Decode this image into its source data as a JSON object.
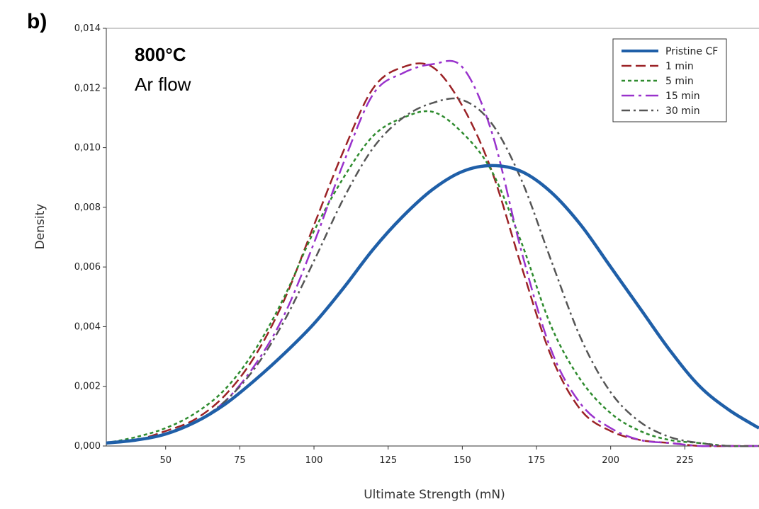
{
  "panel_label": "b)",
  "annotation": {
    "temperature": "800°C",
    "atmosphere": "Ar flow"
  },
  "chart_data": {
    "type": "line",
    "xlabel": "Ultimate Strength (mN)",
    "ylabel": "Density",
    "xlim": [
      30,
      250
    ],
    "ylim": [
      0,
      0.014
    ],
    "x_ticks": [
      50,
      75,
      100,
      125,
      150,
      175,
      200,
      225
    ],
    "x_tick_labels": [
      "50",
      "75",
      "100",
      "125",
      "150",
      "175",
      "200",
      "225"
    ],
    "y_ticks": [
      0,
      0.002,
      0.004,
      0.006,
      0.008,
      0.01,
      0.012,
      0.014
    ],
    "y_tick_labels": [
      "0,000",
      "0,002",
      "0,004",
      "0,006",
      "0,008",
      "0,010",
      "0,012",
      "0,014"
    ],
    "grid": false,
    "legend_position": "top-right",
    "x": [
      30,
      40,
      50,
      60,
      70,
      80,
      90,
      100,
      110,
      120,
      130,
      140,
      150,
      160,
      170,
      180,
      190,
      200,
      210,
      220,
      230,
      240,
      250
    ],
    "series": [
      {
        "name": "Pristine CF",
        "color": "#1f5fa8",
        "dash": "solid",
        "values": [
          0.0001,
          0.0002,
          0.0004,
          0.0008,
          0.0014,
          0.0022,
          0.0031,
          0.0041,
          0.0053,
          0.0066,
          0.0077,
          0.0086,
          0.0092,
          0.0094,
          0.0092,
          0.0085,
          0.0074,
          0.006,
          0.0046,
          0.0032,
          0.002,
          0.0012,
          0.0006
        ]
      },
      {
        "name": "1 min",
        "color": "#9b2226",
        "dash": "dashed",
        "values": [
          0.0001,
          0.0002,
          0.0005,
          0.0009,
          0.0017,
          0.003,
          0.0049,
          0.0074,
          0.0099,
          0.012,
          0.0127,
          0.0127,
          0.0114,
          0.0092,
          0.006,
          0.003,
          0.0012,
          0.0005,
          0.0002,
          0.0001,
          0.0,
          0.0,
          0.0
        ]
      },
      {
        "name": "5 min",
        "color": "#2e8b2e",
        "dash": "dotted",
        "values": [
          0.0001,
          0.0003,
          0.0006,
          0.0011,
          0.0019,
          0.0032,
          0.005,
          0.0072,
          0.009,
          0.0104,
          0.011,
          0.0112,
          0.0105,
          0.0092,
          0.0068,
          0.004,
          0.0022,
          0.0011,
          0.0005,
          0.0002,
          0.0001,
          0.0,
          0.0
        ]
      },
      {
        "name": "15 min",
        "color": "#9932cc",
        "dash": "longdash",
        "values": [
          0.0001,
          0.0002,
          0.0004,
          0.0008,
          0.0015,
          0.0027,
          0.0044,
          0.0068,
          0.0095,
          0.0118,
          0.0125,
          0.0128,
          0.0127,
          0.0105,
          0.0065,
          0.0032,
          0.0014,
          0.0006,
          0.0002,
          0.0001,
          0.0,
          0.0,
          0.0
        ]
      },
      {
        "name": "30 min",
        "color": "#555555",
        "dash": "dashdot",
        "values": [
          0.0001,
          0.0002,
          0.0004,
          0.0008,
          0.0015,
          0.0026,
          0.0042,
          0.0062,
          0.0083,
          0.01,
          0.011,
          0.0115,
          0.0116,
          0.0108,
          0.0089,
          0.0062,
          0.0036,
          0.0018,
          0.0008,
          0.0003,
          0.0001,
          0.0,
          0.0
        ]
      }
    ]
  }
}
